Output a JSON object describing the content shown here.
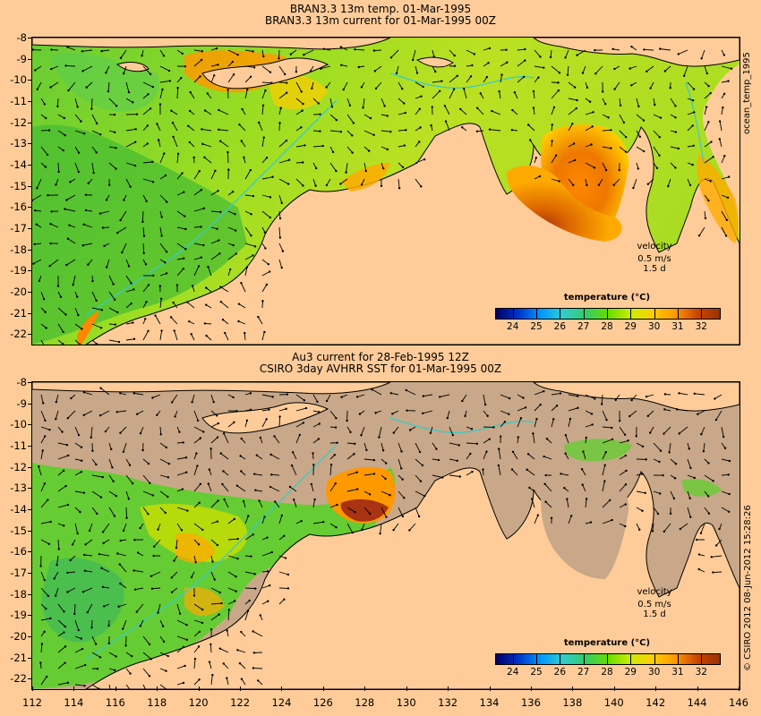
{
  "top_panel": {
    "title_line1": "BRAN3.3 13m temp. 01-Mar-1995",
    "title_line2": "BRAN3.3 13m current for 01-Mar-1995 00Z",
    "side_label": "ocean_temp_1995",
    "velocity_label": "velocity",
    "velocity_scale": "0.5 m/s",
    "velocity_time": "1.5 d",
    "colorbar_title": "temperature (°C)"
  },
  "bottom_panel": {
    "title_line1": "Au3 current for 28-Feb-1995 12Z",
    "title_line2": "CSIRO 3day AVHRR SST for 01-Mar-1995 00Z",
    "side_label": "© CSIRO 2012   08-Jun-2012 15:28:26",
    "velocity_label": "velocity",
    "velocity_scale": "0.5 m/s",
    "velocity_time": "1.5 d",
    "colorbar_title": "temperature (°C)"
  },
  "y_axis_labels": [
    "-8",
    "-9",
    "-10",
    "-11",
    "-12",
    "-13",
    "-14",
    "-15",
    "-16",
    "-17",
    "-18",
    "-19",
    "-20",
    "-21",
    "-22"
  ],
  "x_axis_labels": [
    "112",
    "114",
    "116",
    "118",
    "120",
    "122",
    "124",
    "126",
    "128",
    "130",
    "132",
    "134",
    "136",
    "138",
    "140",
    "142",
    "144",
    "146"
  ],
  "colorbar_ticks": [
    "24",
    "25",
    "26",
    "27",
    "28",
    "29",
    "30",
    "31",
    "32"
  ],
  "colorbar_colors": [
    "#000066",
    "#0033cc",
    "#0099ff",
    "#33cccc",
    "#33cc66",
    "#66dd00",
    "#ccee00",
    "#ffcc00",
    "#ff9900",
    "#cc4400",
    "#993300"
  ],
  "colors": {
    "land": "#ffcc99",
    "no_data": "#c8a888",
    "ocean_cool": "#33cc33",
    "ocean_mid": "#99dd00",
    "ocean_warm": "#ff9900",
    "ocean_hot": "#aa3311",
    "bathymetry_line": "#33cccc",
    "vector": "#000000"
  }
}
